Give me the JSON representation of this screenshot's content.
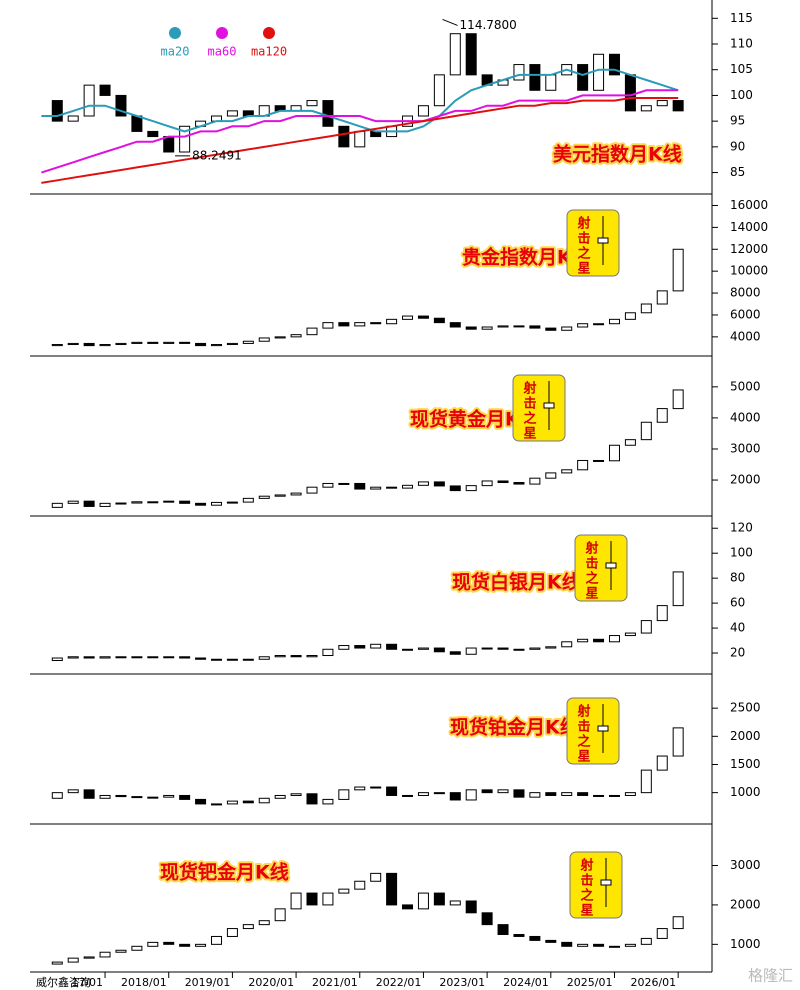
{
  "chart_data": [
    {
      "type": "candlestick",
      "title": "美元指数月K线",
      "x": [
        2016,
        2016.25,
        2016.5,
        2016.75,
        2017,
        2017.25,
        2017.5,
        2017.75,
        2018,
        2018.25,
        2018.5,
        2018.75,
        2019,
        2019.25,
        2019.5,
        2019.75,
        2020,
        2020.25,
        2020.5,
        2020.75,
        2021,
        2021.25,
        2021.5,
        2021.75,
        2022,
        2022.25,
        2022.5,
        2022.75,
        2023,
        2023.25,
        2023.5,
        2023.75,
        2024,
        2024.25,
        2024.5,
        2024.75,
        2025,
        2025.25,
        2025.5,
        2025.75,
        2026
      ],
      "values": [
        99,
        95,
        96,
        102,
        100,
        96,
        93,
        92,
        89,
        94,
        95,
        96,
        97,
        96,
        98,
        97,
        98,
        99,
        94,
        90,
        93,
        92,
        94,
        96,
        98,
        104,
        112,
        104,
        102,
        103,
        106,
        101,
        104,
        106,
        101,
        108,
        104,
        97,
        98,
        99,
        97
      ],
      "ma_series": [
        {
          "name": "ma20",
          "color": "#2a9bb8",
          "values": [
            96,
            96,
            97,
            98,
            98,
            97,
            96,
            95,
            94,
            93,
            94,
            95,
            95,
            96,
            96,
            97,
            97,
            97,
            96,
            95,
            94,
            93,
            93,
            93,
            94,
            96,
            99,
            101,
            102,
            103,
            104,
            104,
            104,
            105,
            104,
            105,
            105,
            104,
            103,
            102,
            101
          ]
        },
        {
          "name": "ma60",
          "color": "#e010e0",
          "values": [
            85,
            86,
            87,
            88,
            89,
            90,
            91,
            91,
            92,
            92,
            93,
            93,
            94,
            94,
            95,
            95,
            96,
            96,
            96,
            96,
            96,
            95,
            95,
            95,
            95,
            96,
            97,
            97,
            98,
            98,
            99,
            99,
            99,
            99,
            100,
            100,
            100,
            100,
            101,
            101,
            101
          ]
        },
        {
          "name": "ma120",
          "color": "#e01010",
          "values": [
            83,
            83.5,
            84,
            84.5,
            85,
            85.5,
            86,
            86.5,
            87,
            87.5,
            88,
            88.5,
            89,
            89.5,
            90,
            90.5,
            91,
            91.5,
            92,
            92.5,
            93,
            93.5,
            94,
            94.5,
            95,
            95.5,
            96,
            96.5,
            97,
            97.5,
            98,
            98,
            98.5,
            98.5,
            99,
            99,
            99,
            99.5,
            99.5,
            99.5,
            99.5
          ]
        }
      ],
      "annotations": [
        {
          "x": 2022.3,
          "y": 114.78,
          "label": "114.7800"
        },
        {
          "x": 2018.1,
          "y": 88.2491,
          "label": "88.2491"
        }
      ],
      "xlim": [
        2015.9,
        2026.5
      ],
      "ylim": [
        82,
        117
      ],
      "yticks": [
        85,
        90,
        95,
        100,
        105,
        110,
        115
      ]
    },
    {
      "type": "candlestick",
      "title": "贵金指数月K线",
      "star_label": "射击之星",
      "x": [
        2016,
        2016.25,
        2016.5,
        2016.75,
        2017,
        2017.25,
        2017.5,
        2017.75,
        2018,
        2018.25,
        2018.5,
        2018.75,
        2019,
        2019.25,
        2019.5,
        2019.75,
        2020,
        2020.25,
        2020.5,
        2020.75,
        2021,
        2021.25,
        2021.5,
        2021.75,
        2022,
        2022.25,
        2022.5,
        2022.75,
        2023,
        2023.25,
        2023.5,
        2023.75,
        2024,
        2024.25,
        2024.5,
        2024.75,
        2025,
        2025.25,
        2025.5,
        2025.75,
        2026
      ],
      "values": [
        3200,
        3300,
        3400,
        3200,
        3300,
        3400,
        3500,
        3400,
        3500,
        3400,
        3200,
        3300,
        3400,
        3600,
        3900,
        4000,
        4200,
        4800,
        5300,
        5000,
        5300,
        5200,
        5600,
        5900,
        5700,
        5300,
        4900,
        4700,
        4900,
        5000,
        5000,
        4800,
        4600,
        4900,
        5200,
        5200,
        5600,
        6200,
        7000,
        8200,
        12000
      ],
      "xlim": [
        2015.9,
        2026.5
      ],
      "ylim": [
        2800,
        16500
      ],
      "yticks": [
        4000,
        6000,
        8000,
        10000,
        12000,
        14000,
        16000
      ]
    },
    {
      "type": "candlestick",
      "title": "现货黄金月K线",
      "star_label": "射击之星",
      "x": [
        2016,
        2016.25,
        2016.5,
        2016.75,
        2017,
        2017.25,
        2017.5,
        2017.75,
        2018,
        2018.25,
        2018.5,
        2018.75,
        2019,
        2019.25,
        2019.5,
        2019.75,
        2020,
        2020.25,
        2020.5,
        2020.75,
        2021,
        2021.25,
        2021.5,
        2021.75,
        2022,
        2022.25,
        2022.5,
        2022.75,
        2023,
        2023.25,
        2023.5,
        2023.75,
        2024,
        2024.25,
        2024.5,
        2024.75,
        2025,
        2025.25,
        2025.5,
        2025.75,
        2026
      ],
      "values": [
        1120,
        1250,
        1320,
        1150,
        1250,
        1260,
        1300,
        1300,
        1320,
        1250,
        1190,
        1280,
        1290,
        1410,
        1480,
        1520,
        1580,
        1770,
        1890,
        1890,
        1710,
        1770,
        1740,
        1830,
        1940,
        1810,
        1660,
        1820,
        1970,
        1920,
        1870,
        2060,
        2230,
        2330,
        2630,
        2620,
        3120,
        3300,
        3860,
        4300,
        4900
      ],
      "xlim": [
        2015.9,
        2026.5
      ],
      "ylim": [
        1100,
        5800
      ],
      "yticks": [
        2000,
        3000,
        4000,
        5000
      ]
    },
    {
      "type": "candlestick",
      "title": "现货白银月K线",
      "star_label": "射击之星",
      "x": [
        2016,
        2016.25,
        2016.5,
        2016.75,
        2017,
        2017.25,
        2017.5,
        2017.75,
        2018,
        2018.25,
        2018.5,
        2018.75,
        2019,
        2019.25,
        2019.5,
        2019.75,
        2020,
        2020.25,
        2020.5,
        2020.75,
        2021,
        2021.25,
        2021.5,
        2021.75,
        2022,
        2022.25,
        2022.5,
        2022.75,
        2023,
        2023.25,
        2023.5,
        2023.75,
        2024,
        2024.25,
        2024.5,
        2024.75,
        2025,
        2025.25,
        2025.5,
        2025.75,
        2026
      ],
      "values": [
        14,
        16,
        17,
        16,
        17,
        17,
        17,
        17,
        17,
        16,
        15,
        15,
        15,
        15,
        17,
        18,
        17,
        18,
        23,
        26,
        24,
        27,
        23,
        23,
        24,
        21,
        19,
        24,
        24,
        23,
        23,
        24,
        25,
        29,
        31,
        29,
        34,
        36,
        46,
        58,
        85
      ],
      "xlim": [
        2015.9,
        2026.5
      ],
      "ylim": [
        8,
        125
      ],
      "yticks": [
        20,
        40,
        60,
        80,
        100,
        120
      ]
    },
    {
      "type": "candlestick",
      "title": "现货铂金月K线",
      "star_label": "射击之星",
      "x": [
        2016,
        2016.25,
        2016.5,
        2016.75,
        2017,
        2017.25,
        2017.5,
        2017.75,
        2018,
        2018.25,
        2018.5,
        2018.75,
        2019,
        2019.25,
        2019.5,
        2019.75,
        2020,
        2020.25,
        2020.5,
        2020.75,
        2021,
        2021.25,
        2021.5,
        2021.75,
        2022,
        2022.25,
        2022.5,
        2022.75,
        2023,
        2023.25,
        2023.5,
        2023.75,
        2024,
        2024.25,
        2024.5,
        2024.75,
        2025,
        2025.25,
        2025.5,
        2025.75,
        2026
      ],
      "values": [
        900,
        1000,
        1050,
        900,
        950,
        930,
        920,
        920,
        950,
        880,
        800,
        800,
        850,
        820,
        900,
        950,
        980,
        800,
        880,
        1050,
        1100,
        1100,
        950,
        950,
        1000,
        1000,
        870,
        1050,
        1000,
        1050,
        920,
        1000,
        950,
        1000,
        950,
        950,
        950,
        1000,
        1400,
        1650,
        2150
      ],
      "xlim": [
        2015.9,
        2026.5
      ],
      "ylim": [
        550,
        3000
      ],
      "yticks": [
        1000,
        1500,
        2000,
        2500
      ]
    },
    {
      "type": "candlestick",
      "title": "现货钯金月K线",
      "star_label": "射击之星",
      "x": [
        2016,
        2016.25,
        2016.5,
        2016.75,
        2017,
        2017.25,
        2017.5,
        2017.75,
        2018,
        2018.25,
        2018.5,
        2018.75,
        2019,
        2019.25,
        2019.5,
        2019.75,
        2020,
        2020.25,
        2020.5,
        2020.75,
        2021,
        2021.25,
        2021.5,
        2021.75,
        2022,
        2022.25,
        2022.5,
        2022.75,
        2023,
        2023.25,
        2023.5,
        2023.75,
        2024,
        2024.25,
        2024.5,
        2024.75,
        2025,
        2025.25,
        2025.5,
        2025.75,
        2026
      ],
      "values": [
        500,
        550,
        650,
        680,
        800,
        850,
        950,
        1050,
        1000,
        950,
        1000,
        1200,
        1400,
        1500,
        1600,
        1900,
        2300,
        2000,
        2300,
        2400,
        2600,
        2800,
        2000,
        1900,
        2300,
        2000,
        2100,
        1800,
        1500,
        1250,
        1200,
        1100,
        1050,
        950,
        1000,
        950,
        950,
        1000,
        1150,
        1400,
        1700
      ],
      "xlim": [
        2015.9,
        2026.5
      ],
      "ylim": [
        400,
        3900
      ],
      "yticks": [
        1000,
        2000,
        3000
      ],
      "xticks": [
        {
          "value": 2017,
          "label": "17/01"
        },
        {
          "value": 2018,
          "label": "2018/01"
        },
        {
          "value": 2019,
          "label": "2019/01"
        },
        {
          "value": 2020,
          "label": "2020/01"
        },
        {
          "value": 2021,
          "label": "2021/01"
        },
        {
          "value": 2022,
          "label": "2022/01"
        },
        {
          "value": 2023,
          "label": "2023/01"
        },
        {
          "value": 2024,
          "label": "2024/01"
        },
        {
          "value": 2025,
          "label": "2025/01"
        },
        {
          "value": 2026,
          "label": "2026/01"
        }
      ]
    }
  ],
  "footer": {
    "source": "威尔鑫咨询",
    "watermark": "格隆汇"
  }
}
